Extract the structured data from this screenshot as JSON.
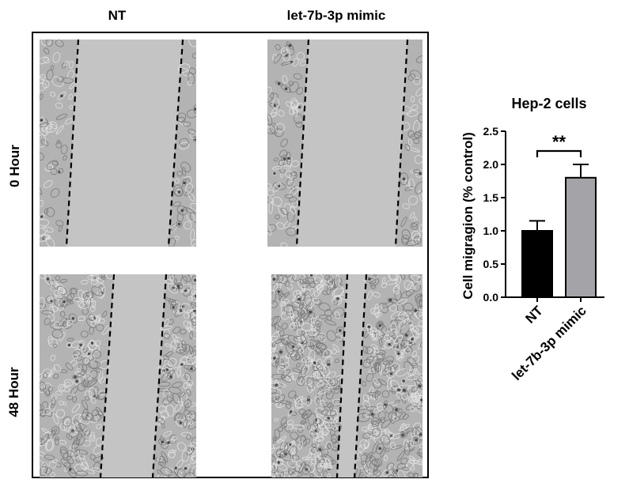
{
  "figure": {
    "columns": [
      "NT",
      "let-7b-3p mimic"
    ],
    "rows": [
      "0 Hour",
      "48 Hour"
    ],
    "image_colors": {
      "open_area": "#c4c4c4",
      "cell_bg": "#b3b3b3",
      "cells_dark": "#7a7a7a",
      "cells_light": "#e2e2e2"
    }
  },
  "chart_data": {
    "type": "bar",
    "title": "Hep-2 cells",
    "categories": [
      "NT",
      "let-7b-3p mimic"
    ],
    "values": [
      1.0,
      1.8
    ],
    "errors": [
      0.15,
      0.2
    ],
    "colors": [
      "#000000",
      "#a3a3a8"
    ],
    "ylabel": "Cell migragion (% control)",
    "xlabel": "",
    "ylim": [
      0,
      2.5
    ],
    "yticks": [
      "0.0",
      "0.5",
      "1.0",
      "1.5",
      "2.0",
      "2.5"
    ],
    "significance": {
      "label": "**",
      "between": [
        0,
        1
      ]
    },
    "grid": false
  }
}
